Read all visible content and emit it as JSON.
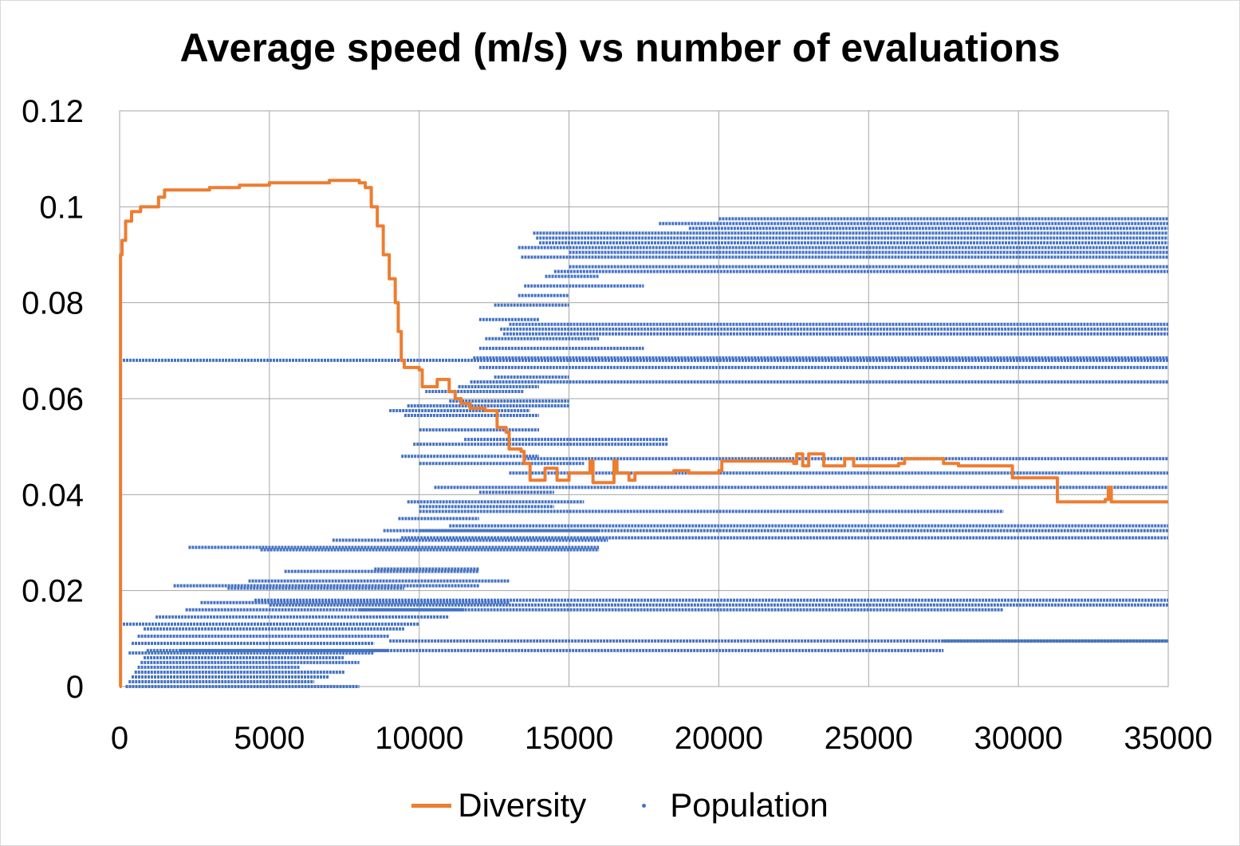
{
  "chart_data": {
    "type": "scatter",
    "title": "Average speed (m/s) vs number of evaluations",
    "xlabel": "",
    "ylabel": "",
    "xlim": [
      0,
      35000
    ],
    "ylim": [
      0,
      0.12
    ],
    "x_ticks": [
      "0",
      "5000",
      "10000",
      "15000",
      "20000",
      "25000",
      "30000",
      "35000"
    ],
    "y_ticks": [
      "0",
      "0.02",
      "0.04",
      "0.06",
      "0.08",
      "0.1",
      "0.12"
    ],
    "grid": true,
    "legend_position": "bottom",
    "series": [
      {
        "name": "Diversity",
        "kind": "line",
        "color": "#ed7d31",
        "points": [
          [
            0,
            0.0
          ],
          [
            30,
            0.09
          ],
          [
            80,
            0.093
          ],
          [
            200,
            0.097
          ],
          [
            400,
            0.099
          ],
          [
            700,
            0.1
          ],
          [
            1000,
            0.1
          ],
          [
            1300,
            0.102
          ],
          [
            1500,
            0.1035
          ],
          [
            2500,
            0.1035
          ],
          [
            3000,
            0.104
          ],
          [
            4000,
            0.1045
          ],
          [
            5000,
            0.105
          ],
          [
            6000,
            0.105
          ],
          [
            7000,
            0.1055
          ],
          [
            8000,
            0.105
          ],
          [
            8200,
            0.104
          ],
          [
            8400,
            0.1
          ],
          [
            8600,
            0.096
          ],
          [
            8800,
            0.09
          ],
          [
            9000,
            0.085
          ],
          [
            9200,
            0.08
          ],
          [
            9300,
            0.074
          ],
          [
            9400,
            0.068
          ],
          [
            9500,
            0.0665
          ],
          [
            10000,
            0.066
          ],
          [
            10100,
            0.0625
          ],
          [
            10500,
            0.0625
          ],
          [
            10600,
            0.064
          ],
          [
            10900,
            0.064
          ],
          [
            11000,
            0.0615
          ],
          [
            11200,
            0.06
          ],
          [
            11400,
            0.059
          ],
          [
            11700,
            0.058
          ],
          [
            12100,
            0.058
          ],
          [
            12200,
            0.0575
          ],
          [
            12500,
            0.0575
          ],
          [
            12600,
            0.054
          ],
          [
            12900,
            0.053
          ],
          [
            13000,
            0.0495
          ],
          [
            13400,
            0.049
          ],
          [
            13500,
            0.0465
          ],
          [
            13700,
            0.043
          ],
          [
            14100,
            0.043
          ],
          [
            14200,
            0.0455
          ],
          [
            14600,
            0.043
          ],
          [
            15000,
            0.0445
          ],
          [
            15500,
            0.0445
          ],
          [
            15700,
            0.047
          ],
          [
            15800,
            0.0425
          ],
          [
            16400,
            0.0425
          ],
          [
            16500,
            0.047
          ],
          [
            16600,
            0.0445
          ],
          [
            16900,
            0.0445
          ],
          [
            17000,
            0.043
          ],
          [
            17200,
            0.0445
          ],
          [
            18000,
            0.0445
          ],
          [
            18500,
            0.045
          ],
          [
            19000,
            0.0445
          ],
          [
            20000,
            0.045
          ],
          [
            20100,
            0.047
          ],
          [
            21000,
            0.047
          ],
          [
            22000,
            0.047
          ],
          [
            22500,
            0.0465
          ],
          [
            22600,
            0.0485
          ],
          [
            22800,
            0.046
          ],
          [
            23000,
            0.0485
          ],
          [
            23500,
            0.046
          ],
          [
            24000,
            0.046
          ],
          [
            24200,
            0.0475
          ],
          [
            24500,
            0.046
          ],
          [
            26000,
            0.0465
          ],
          [
            26200,
            0.0475
          ],
          [
            27000,
            0.0475
          ],
          [
            27500,
            0.0465
          ],
          [
            28000,
            0.046
          ],
          [
            29000,
            0.046
          ],
          [
            29700,
            0.046
          ],
          [
            29800,
            0.0435
          ],
          [
            30800,
            0.0435
          ],
          [
            31200,
            0.0435
          ],
          [
            31300,
            0.0385
          ],
          [
            32000,
            0.0385
          ],
          [
            32900,
            0.039
          ],
          [
            33000,
            0.0415
          ],
          [
            33100,
            0.0385
          ],
          [
            34000,
            0.0385
          ],
          [
            35000,
            0.0385
          ]
        ]
      },
      {
        "name": "Population",
        "kind": "scatter",
        "color": "#4472c4",
        "segments": [
          [
            0,
            35000,
            0.068
          ],
          [
            200,
            8000,
            0.0
          ],
          [
            300,
            6500,
            0.001
          ],
          [
            400,
            7000,
            0.002
          ],
          [
            500,
            7500,
            0.003
          ],
          [
            600,
            6000,
            0.004
          ],
          [
            700,
            8000,
            0.005
          ],
          [
            800,
            7500,
            0.006
          ],
          [
            300,
            8500,
            0.007
          ],
          [
            900,
            9000,
            0.0075
          ],
          [
            400,
            8500,
            0.009
          ],
          [
            600,
            9000,
            0.0105
          ],
          [
            800,
            9500,
            0.012
          ],
          [
            0,
            10000,
            0.013
          ],
          [
            1200,
            11000,
            0.0145
          ],
          [
            2200,
            11500,
            0.016
          ],
          [
            2700,
            13000,
            0.0175
          ],
          [
            4500,
            35000,
            0.018
          ],
          [
            5000,
            35000,
            0.017
          ],
          [
            8000,
            29500,
            0.016
          ],
          [
            9000,
            35000,
            0.0095
          ],
          [
            27500,
            35000,
            0.0095
          ],
          [
            2000,
            27500,
            0.0075
          ],
          [
            1800,
            12000,
            0.021
          ],
          [
            3600,
            9500,
            0.0205
          ],
          [
            4300,
            13000,
            0.022
          ],
          [
            5500,
            12000,
            0.024
          ],
          [
            8500,
            12000,
            0.0245
          ],
          [
            2300,
            16000,
            0.029
          ],
          [
            4700,
            16000,
            0.0285
          ],
          [
            7100,
            16300,
            0.0305
          ],
          [
            9400,
            35000,
            0.031
          ],
          [
            10000,
            35000,
            0.0325
          ],
          [
            11000,
            35000,
            0.0335
          ],
          [
            8800,
            16000,
            0.0325
          ],
          [
            9300,
            12000,
            0.035
          ],
          [
            10000,
            29500,
            0.0365
          ],
          [
            10000,
            14500,
            0.0375
          ],
          [
            9600,
            15500,
            0.0385
          ],
          [
            10500,
            35000,
            0.0415
          ],
          [
            12000,
            14500,
            0.0405
          ],
          [
            13000,
            35000,
            0.0445
          ],
          [
            10000,
            15500,
            0.0465
          ],
          [
            9400,
            14000,
            0.048
          ],
          [
            13500,
            35000,
            0.0475
          ],
          [
            9800,
            18300,
            0.0505
          ],
          [
            10000,
            14000,
            0.0535
          ],
          [
            11500,
            18300,
            0.0515
          ],
          [
            9500,
            14000,
            0.0565
          ],
          [
            9000,
            13700,
            0.0575
          ],
          [
            9600,
            15000,
            0.0585
          ],
          [
            11000,
            15000,
            0.0595
          ],
          [
            10200,
            13500,
            0.0615
          ],
          [
            11300,
            14000,
            0.0625
          ],
          [
            11700,
            35000,
            0.0635
          ],
          [
            12000,
            35000,
            0.0665
          ],
          [
            12500,
            15000,
            0.0645
          ],
          [
            11800,
            35000,
            0.0685
          ],
          [
            12000,
            17500,
            0.0705
          ],
          [
            12200,
            16000,
            0.0725
          ],
          [
            12800,
            35000,
            0.0735
          ],
          [
            12700,
            35000,
            0.0745
          ],
          [
            13000,
            35000,
            0.0755
          ],
          [
            12000,
            14000,
            0.0765
          ],
          [
            12500,
            15000,
            0.0795
          ],
          [
            13300,
            15000,
            0.0815
          ],
          [
            13500,
            17500,
            0.0835
          ],
          [
            14200,
            16000,
            0.0855
          ],
          [
            14500,
            35000,
            0.0865
          ],
          [
            15000,
            35000,
            0.0875
          ],
          [
            13400,
            35000,
            0.0895
          ],
          [
            15000,
            35000,
            0.0905
          ],
          [
            13300,
            35000,
            0.0915
          ],
          [
            14000,
            35000,
            0.0925
          ],
          [
            13900,
            35000,
            0.0935
          ],
          [
            13800,
            35000,
            0.0945
          ],
          [
            19000,
            35000,
            0.0955
          ],
          [
            18000,
            35000,
            0.0965
          ],
          [
            20000,
            35000,
            0.0975
          ]
        ]
      }
    ]
  }
}
